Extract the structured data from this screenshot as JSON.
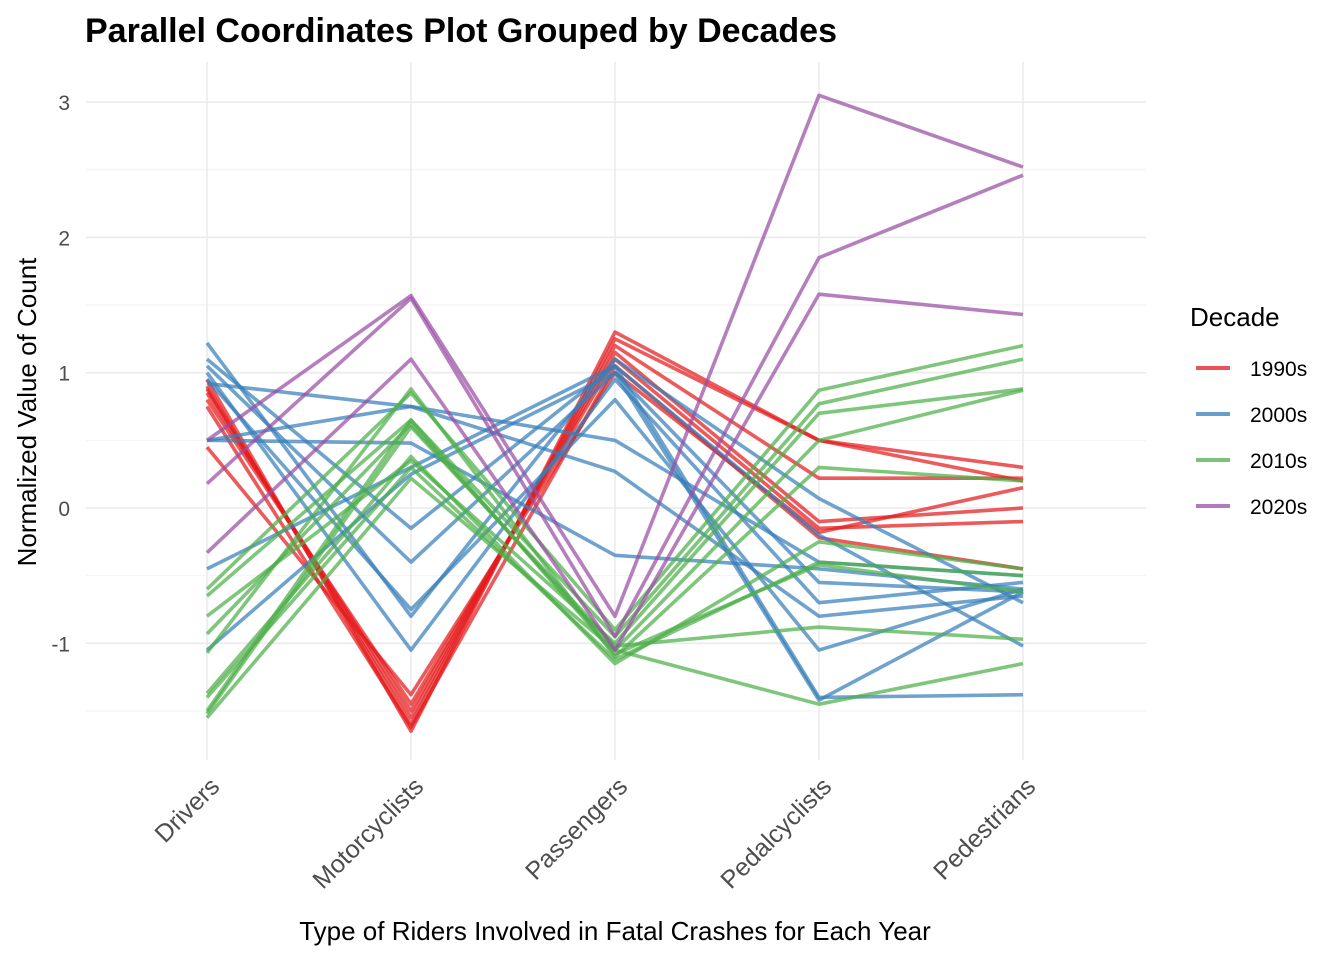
{
  "chart_data": {
    "type": "line",
    "title": "Parallel Coordinates Plot Grouped by Decades",
    "xlabel": "Type of Riders Involved in Fatal Crashes for Each Year",
    "ylabel": "Normalized Value of Count",
    "categories": [
      "Drivers",
      "Motorcyclists",
      "Passengers",
      "Pedalcyclists",
      "Pedestrians"
    ],
    "ylim": [
      -1.85,
      3.3
    ],
    "yticks": [
      3,
      2,
      1,
      0,
      -1
    ],
    "ytick_labels": [
      "3",
      "2",
      "1",
      "0",
      "-1"
    ],
    "grid": true,
    "legend": {
      "title": "Decade",
      "placement": "right",
      "entries": [
        {
          "label": "1990s",
          "color": "#E41A1C"
        },
        {
          "label": "2000s",
          "color": "#377EB8"
        },
        {
          "label": "2010s",
          "color": "#4DAF4A"
        },
        {
          "label": "2020s",
          "color": "#984EA3"
        }
      ]
    },
    "series": [
      {
        "group": "1990s",
        "values": [
          0.95,
          -1.65,
          1.3,
          0.5,
          0.3
        ]
      },
      {
        "group": "1990s",
        "values": [
          0.9,
          -1.6,
          1.25,
          0.5,
          0.2
        ]
      },
      {
        "group": "1990s",
        "values": [
          0.88,
          -1.55,
          1.2,
          0.22,
          0.22
        ]
      },
      {
        "group": "1990s",
        "values": [
          0.85,
          -1.5,
          1.15,
          -0.1,
          0.0
        ]
      },
      {
        "group": "1990s",
        "values": [
          0.8,
          -1.45,
          1.1,
          -0.15,
          -0.1
        ]
      },
      {
        "group": "1990s",
        "values": [
          0.75,
          -1.62,
          1.05,
          -0.22,
          -0.45
        ]
      },
      {
        "group": "1990s",
        "values": [
          0.45,
          -1.38,
          1.0,
          -0.18,
          0.15
        ]
      },
      {
        "group": "2000s",
        "values": [
          1.22,
          -0.8,
          1.1,
          0.07,
          -0.7
        ]
      },
      {
        "group": "2000s",
        "values": [
          1.1,
          -0.15,
          1.05,
          -0.2,
          -1.02
        ]
      },
      {
        "group": "2000s",
        "values": [
          1.05,
          -0.4,
          1.0,
          -0.55,
          -0.62
        ]
      },
      {
        "group": "2000s",
        "values": [
          1.0,
          -1.05,
          0.95,
          -0.7,
          -0.55
        ]
      },
      {
        "group": "2000s",
        "values": [
          0.95,
          -0.75,
          0.8,
          -1.05,
          -0.6
        ]
      },
      {
        "group": "2000s",
        "values": [
          0.92,
          0.75,
          0.5,
          -0.4,
          -0.5
        ]
      },
      {
        "group": "2000s",
        "values": [
          0.5,
          0.75,
          0.27,
          -0.8,
          -0.65
        ]
      },
      {
        "group": "2000s",
        "values": [
          0.5,
          0.48,
          -0.35,
          -0.45,
          -0.6
        ]
      },
      {
        "group": "2000s",
        "values": [
          -0.45,
          0.3,
          1.05,
          -1.4,
          -1.38
        ]
      },
      {
        "group": "2000s",
        "values": [
          -1.05,
          0.25,
          1.0,
          -1.42,
          -0.62
        ]
      },
      {
        "group": "2010s",
        "values": [
          -0.6,
          0.85,
          -0.9,
          0.87,
          1.2
        ]
      },
      {
        "group": "2010s",
        "values": [
          -0.65,
          0.65,
          -0.95,
          0.77,
          1.1
        ]
      },
      {
        "group": "2010s",
        "values": [
          -0.8,
          0.35,
          -1.0,
          0.7,
          0.88
        ]
      },
      {
        "group": "2010s",
        "values": [
          -0.93,
          0.62,
          -1.05,
          0.5,
          0.87
        ]
      },
      {
        "group": "2010s",
        "values": [
          -1.07,
          0.88,
          -1.1,
          0.3,
          0.2
        ]
      },
      {
        "group": "2010s",
        "values": [
          -1.37,
          0.38,
          -1.15,
          -0.25,
          -0.45
        ]
      },
      {
        "group": "2010s",
        "values": [
          -1.4,
          0.3,
          -1.12,
          -0.4,
          -0.5
        ]
      },
      {
        "group": "2010s",
        "values": [
          -1.5,
          0.65,
          -1.08,
          -0.42,
          -0.62
        ]
      },
      {
        "group": "2010s",
        "values": [
          -1.52,
          0.6,
          -1.02,
          -0.88,
          -0.97
        ]
      },
      {
        "group": "2010s",
        "values": [
          -1.55,
          0.22,
          -1.05,
          -1.45,
          -1.15
        ]
      },
      {
        "group": "2020s",
        "values": [
          0.5,
          1.57,
          -0.8,
          3.05,
          2.52
        ]
      },
      {
        "group": "2020s",
        "values": [
          0.18,
          1.55,
          -0.95,
          1.85,
          2.46
        ]
      },
      {
        "group": "2020s",
        "values": [
          -0.33,
          1.1,
          -1.05,
          1.58,
          1.43
        ]
      }
    ]
  }
}
